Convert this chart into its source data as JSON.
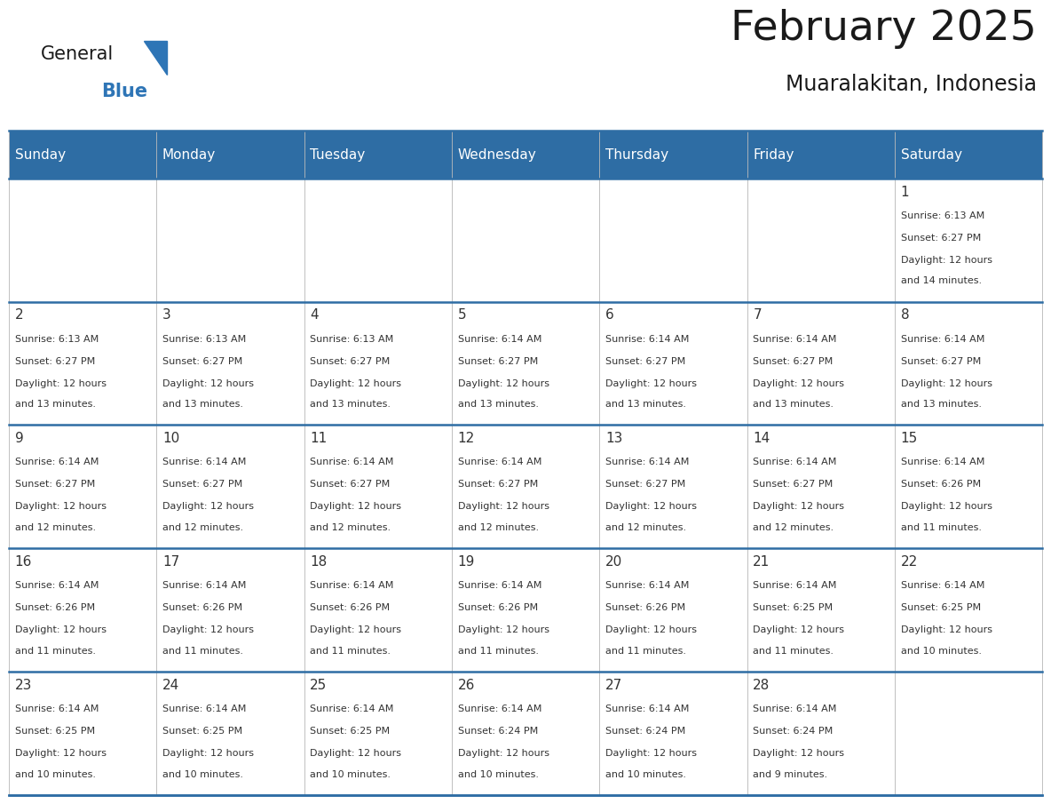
{
  "title": "February 2025",
  "subtitle": "Muaralakitan, Indonesia",
  "days_of_week": [
    "Sunday",
    "Monday",
    "Tuesday",
    "Wednesday",
    "Thursday",
    "Friday",
    "Saturday"
  ],
  "header_bg": "#2E6DA4",
  "header_text": "#FFFFFF",
  "cell_bg": "#FFFFFF",
  "row_sep_color": "#2E6DA4",
  "col_sep_color": "#CCCCCC",
  "text_color": "#333333",
  "day_num_color": "#333333",
  "logo_color_general": "#1a1a1a",
  "logo_color_blue": "#2E75B6",
  "logo_triangle_color": "#2E75B6",
  "calendar_data": [
    [
      {
        "day": null,
        "sunrise": null,
        "sunset": null,
        "daylight": null
      },
      {
        "day": null,
        "sunrise": null,
        "sunset": null,
        "daylight": null
      },
      {
        "day": null,
        "sunrise": null,
        "sunset": null,
        "daylight": null
      },
      {
        "day": null,
        "sunrise": null,
        "sunset": null,
        "daylight": null
      },
      {
        "day": null,
        "sunrise": null,
        "sunset": null,
        "daylight": null
      },
      {
        "day": null,
        "sunrise": null,
        "sunset": null,
        "daylight": null
      },
      {
        "day": 1,
        "sunrise": "6:13 AM",
        "sunset": "6:27 PM",
        "daylight": "12 hours and 14 minutes."
      }
    ],
    [
      {
        "day": 2,
        "sunrise": "6:13 AM",
        "sunset": "6:27 PM",
        "daylight": "12 hours and 13 minutes."
      },
      {
        "day": 3,
        "sunrise": "6:13 AM",
        "sunset": "6:27 PM",
        "daylight": "12 hours and 13 minutes."
      },
      {
        "day": 4,
        "sunrise": "6:13 AM",
        "sunset": "6:27 PM",
        "daylight": "12 hours and 13 minutes."
      },
      {
        "day": 5,
        "sunrise": "6:14 AM",
        "sunset": "6:27 PM",
        "daylight": "12 hours and 13 minutes."
      },
      {
        "day": 6,
        "sunrise": "6:14 AM",
        "sunset": "6:27 PM",
        "daylight": "12 hours and 13 minutes."
      },
      {
        "day": 7,
        "sunrise": "6:14 AM",
        "sunset": "6:27 PM",
        "daylight": "12 hours and 13 minutes."
      },
      {
        "day": 8,
        "sunrise": "6:14 AM",
        "sunset": "6:27 PM",
        "daylight": "12 hours and 13 minutes."
      }
    ],
    [
      {
        "day": 9,
        "sunrise": "6:14 AM",
        "sunset": "6:27 PM",
        "daylight": "12 hours and 12 minutes."
      },
      {
        "day": 10,
        "sunrise": "6:14 AM",
        "sunset": "6:27 PM",
        "daylight": "12 hours and 12 minutes."
      },
      {
        "day": 11,
        "sunrise": "6:14 AM",
        "sunset": "6:27 PM",
        "daylight": "12 hours and 12 minutes."
      },
      {
        "day": 12,
        "sunrise": "6:14 AM",
        "sunset": "6:27 PM",
        "daylight": "12 hours and 12 minutes."
      },
      {
        "day": 13,
        "sunrise": "6:14 AM",
        "sunset": "6:27 PM",
        "daylight": "12 hours and 12 minutes."
      },
      {
        "day": 14,
        "sunrise": "6:14 AM",
        "sunset": "6:27 PM",
        "daylight": "12 hours and 12 minutes."
      },
      {
        "day": 15,
        "sunrise": "6:14 AM",
        "sunset": "6:26 PM",
        "daylight": "12 hours and 11 minutes."
      }
    ],
    [
      {
        "day": 16,
        "sunrise": "6:14 AM",
        "sunset": "6:26 PM",
        "daylight": "12 hours and 11 minutes."
      },
      {
        "day": 17,
        "sunrise": "6:14 AM",
        "sunset": "6:26 PM",
        "daylight": "12 hours and 11 minutes."
      },
      {
        "day": 18,
        "sunrise": "6:14 AM",
        "sunset": "6:26 PM",
        "daylight": "12 hours and 11 minutes."
      },
      {
        "day": 19,
        "sunrise": "6:14 AM",
        "sunset": "6:26 PM",
        "daylight": "12 hours and 11 minutes."
      },
      {
        "day": 20,
        "sunrise": "6:14 AM",
        "sunset": "6:26 PM",
        "daylight": "12 hours and 11 minutes."
      },
      {
        "day": 21,
        "sunrise": "6:14 AM",
        "sunset": "6:25 PM",
        "daylight": "12 hours and 11 minutes."
      },
      {
        "day": 22,
        "sunrise": "6:14 AM",
        "sunset": "6:25 PM",
        "daylight": "12 hours and 10 minutes."
      }
    ],
    [
      {
        "day": 23,
        "sunrise": "6:14 AM",
        "sunset": "6:25 PM",
        "daylight": "12 hours and 10 minutes."
      },
      {
        "day": 24,
        "sunrise": "6:14 AM",
        "sunset": "6:25 PM",
        "daylight": "12 hours and 10 minutes."
      },
      {
        "day": 25,
        "sunrise": "6:14 AM",
        "sunset": "6:25 PM",
        "daylight": "12 hours and 10 minutes."
      },
      {
        "day": 26,
        "sunrise": "6:14 AM",
        "sunset": "6:24 PM",
        "daylight": "12 hours and 10 minutes."
      },
      {
        "day": 27,
        "sunrise": "6:14 AM",
        "sunset": "6:24 PM",
        "daylight": "12 hours and 10 minutes."
      },
      {
        "day": 28,
        "sunrise": "6:14 AM",
        "sunset": "6:24 PM",
        "daylight": "12 hours and 9 minutes."
      },
      {
        "day": null,
        "sunrise": null,
        "sunset": null,
        "daylight": null
      }
    ]
  ]
}
